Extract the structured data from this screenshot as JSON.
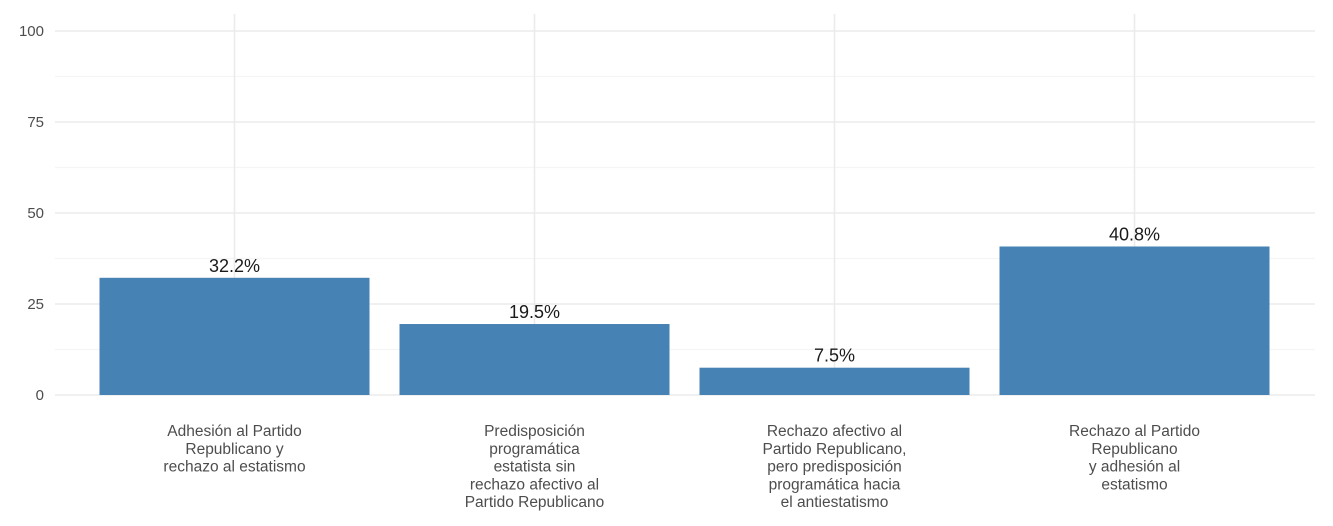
{
  "chart_data": {
    "type": "bar",
    "categories": [
      [
        "Adhesión al Partido",
        "Republicano y",
        "rechazo al estatismo"
      ],
      [
        "Predisposición",
        "programática",
        "estatista sin",
        "rechazo afectivo al",
        "Partido Republicano"
      ],
      [
        "Rechazo afectivo al",
        "Partido Republicano,",
        "pero predisposición",
        "programática hacia",
        "el antiestatismo"
      ],
      [
        "Rechazo al Partido",
        "Republicano",
        "y adhesión al",
        "estatismo"
      ]
    ],
    "values": [
      32.2,
      19.5,
      7.5,
      40.8
    ],
    "value_labels": [
      "32.2%",
      "19.5%",
      "7.5%",
      "40.8%"
    ],
    "y_ticks": [
      0,
      25,
      50,
      75,
      100
    ],
    "y_tick_labels": [
      "0",
      "25",
      "50",
      "75",
      "100"
    ],
    "ylim": [
      0,
      100
    ],
    "grid": true,
    "legend": "none",
    "colors": {
      "bar": "#4682b4",
      "grid_major": "#ebebeb",
      "grid_minor": "#f5f5f5"
    }
  }
}
